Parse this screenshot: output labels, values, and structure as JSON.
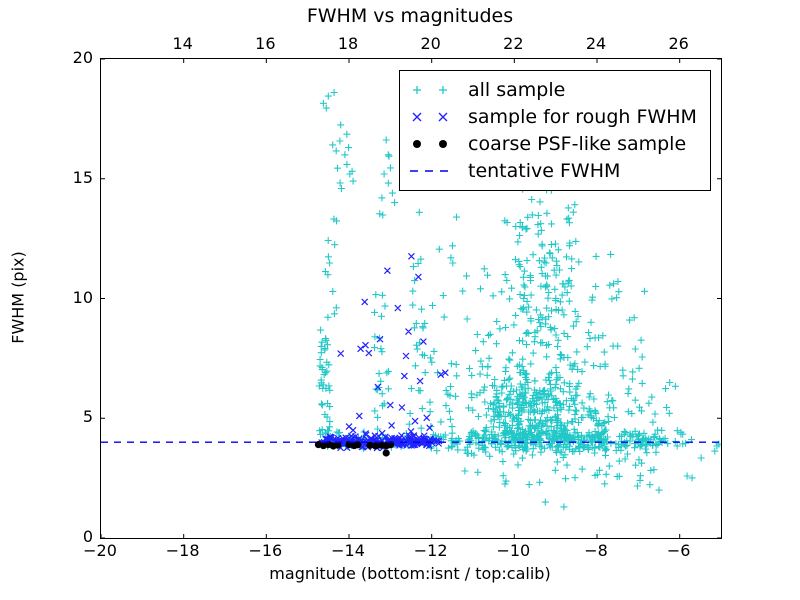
{
  "window": {
    "background": "#ffffff"
  },
  "colors": {
    "all_sample": "#22c8c8",
    "rough_fwhm": "#2222ff",
    "psf_like": "#000000",
    "tentative_line": "#0000ee",
    "axis": "#000000"
  },
  "chart_data": {
    "type": "scatter",
    "title": "FWHM vs magnitudes",
    "seed": 42,
    "grid": false,
    "legend_position": "upper right",
    "x_bottom": {
      "label": "magnitude (bottom:isnt / top:calib)",
      "min": -20,
      "max": -5,
      "ticks": [
        -20,
        -18,
        -16,
        -14,
        -12,
        -10,
        -8,
        -6
      ],
      "tick_labels": [
        "−20",
        "−18",
        "−16",
        "−14",
        "−12",
        "−10",
        "−8",
        "−6"
      ]
    },
    "x_top": {
      "min": 12,
      "max": 27,
      "ticks": [
        14,
        16,
        18,
        20,
        22,
        24,
        26
      ],
      "tick_labels": [
        "14",
        "16",
        "18",
        "20",
        "22",
        "24",
        "26"
      ]
    },
    "y": {
      "label": "FWHM (pix)",
      "min": 0,
      "max": 20,
      "ticks": [
        0,
        5,
        10,
        15,
        20
      ],
      "tick_labels": [
        "0",
        "5",
        "10",
        "15",
        "20"
      ]
    },
    "legend": [
      {
        "marker": "plus",
        "color": "#22c8c8",
        "label": "all sample"
      },
      {
        "marker": "x",
        "color": "#2222ff",
        "label": "sample for rough FWHM"
      },
      {
        "marker": "dot",
        "color": "#000000",
        "label": "coarse PSF-like sample"
      },
      {
        "marker": "dash",
        "color": "#0000ee",
        "label": "tentative FWHM"
      }
    ],
    "tentative_fwhm": {
      "y": 4.0,
      "x1": -20,
      "x2": -5,
      "style": "dashed"
    },
    "series": [
      {
        "name": "all sample",
        "marker": "plus",
        "color": "#22c8c8",
        "points": [
          [
            -14.5,
            18.45
          ],
          [
            -14.36,
            18.6
          ],
          [
            -14.62,
            18.15
          ],
          [
            -14.55,
            17.95
          ],
          [
            -14.2,
            17.25
          ],
          [
            -14.1,
            16.0
          ],
          [
            -14.05,
            15.6
          ],
          [
            -13.98,
            15.2
          ],
          [
            -13.9,
            14.9
          ],
          [
            -13.1,
            16.62
          ],
          [
            -13.05,
            16.0
          ],
          [
            -13.15,
            15.2
          ],
          [
            -12.95,
            14.4
          ],
          [
            -12.3,
            13.6
          ],
          [
            -11.4,
            13.4
          ],
          [
            -6.85,
            10.3
          ],
          [
            -7.1,
            9.2
          ],
          [
            -9.25,
            1.5
          ],
          [
            -8.8,
            1.3
          ],
          [
            -6.95,
            2.6
          ],
          [
            -6.5,
            2.0
          ],
          [
            -5.1,
            3.84
          ],
          [
            -5.15,
            3.63
          ],
          [
            -5.05,
            3.92
          ],
          [
            -5.48,
            3.34
          ],
          [
            -5.82,
            2.59
          ],
          [
            -5.7,
            2.51
          ]
        ],
        "clusters": [
          {
            "n": 40,
            "x": [
              -14.72,
              -14.45
            ],
            "y": [
              4.25,
              8.7
            ]
          },
          {
            "n": 12,
            "x": [
              -14.6,
              -14.3
            ],
            "y": [
              8.7,
              13.8
            ]
          },
          {
            "n": 9,
            "x": [
              -14.4,
              -13.85
            ],
            "y": [
              14.2,
              17.2
            ]
          },
          {
            "n": 7,
            "x": [
              -13.35,
              -12.85
            ],
            "y": [
              13.4,
              16.3
            ]
          },
          {
            "n": 24,
            "x": [
              -13.45,
              -13.0
            ],
            "y": [
              4.3,
              10.2
            ]
          },
          {
            "n": 20,
            "x": [
              -12.55,
              -12.15
            ],
            "y": [
              4.3,
              9.6
            ]
          },
          {
            "n": 6,
            "x": [
              -12.5,
              -12.2
            ],
            "y": [
              9.6,
              12.2
            ]
          },
          {
            "n": 22,
            "x": [
              -12.1,
              -11.05
            ],
            "y": [
              4.3,
              8.0
            ]
          },
          {
            "n": 10,
            "x": [
              -12.0,
              -11.1
            ],
            "y": [
              8.0,
              12.3
            ]
          },
          {
            "n": 470,
            "x": {
              "dist": "gauss",
              "mean": -9.5,
              "sd": 0.85,
              "min": -11.2,
              "max": -6.9
            },
            "y": {
              "dist": "halfgauss",
              "base": 4.05,
              "scale": 1.85,
              "min": 2.7,
              "max": 9.2
            }
          },
          {
            "n": 115,
            "x": {
              "dist": "gauss",
              "mean": -9.4,
              "sd": 0.9,
              "min": -10.9,
              "max": -7.2
            },
            "y": [
              8.2,
              11.6
            ]
          },
          {
            "n": 40,
            "x": {
              "dist": "gauss",
              "mean": -9.25,
              "sd": 0.75,
              "min": -10.5,
              "max": -7.5
            },
            "y": [
              11.6,
              13.6
            ]
          },
          {
            "n": 10,
            "x": [
              -9.9,
              -8.3
            ],
            "y": [
              13.6,
              15.15
            ]
          },
          {
            "n": 110,
            "x": [
              -14.7,
              -11.2
            ],
            "y": {
              "dist": "gauss",
              "mean": 4.05,
              "sd": 0.2,
              "min": 3.6,
              "max": 4.6
            }
          },
          {
            "n": 300,
            "x": [
              -11.2,
              -6.45
            ],
            "y": {
              "dist": "gauss",
              "mean": 4.02,
              "sd": 0.24,
              "min": 3.3,
              "max": 4.75
            }
          },
          {
            "n": 9,
            "x": [
              -6.45,
              -5.65
            ],
            "y": {
              "dist": "gauss",
              "mean": 4.0,
              "sd": 0.18,
              "min": 3.6,
              "max": 4.4
            }
          },
          {
            "n": 38,
            "x": [
              -11.25,
              -6.6
            ],
            "y": [
              2.1,
              3.55
            ]
          },
          {
            "n": 26,
            "x": [
              -7.3,
              -5.9
            ],
            "y": [
              4.2,
              6.6
            ]
          },
          {
            "n": 14,
            "x": [
              -8.1,
              -6.9
            ],
            "y": [
              6.6,
              8.4
            ]
          }
        ]
      },
      {
        "name": "sample for rough FWHM",
        "marker": "x",
        "color": "#2222ff",
        "points": [
          [
            -14.2,
            7.7
          ],
          [
            -13.72,
            7.9
          ],
          [
            -13.6,
            8.05
          ],
          [
            -13.52,
            7.72
          ],
          [
            -12.56,
            8.62
          ],
          [
            -12.66,
            6.76
          ],
          [
            -12.28,
            6.55
          ],
          [
            -12.97,
            4.7
          ],
          [
            -12.4,
            4.88
          ],
          [
            -12.49,
            11.76
          ],
          [
            -13.07,
            11.16
          ],
          [
            -13.62,
            9.86
          ],
          [
            -12.82,
            9.6
          ],
          [
            -12.32,
            10.9
          ],
          [
            -11.67,
            6.9
          ],
          [
            -11.78,
            6.82
          ],
          [
            -13.0,
            5.55
          ],
          [
            -12.12,
            5.02
          ],
          [
            -13.3,
            6.3
          ],
          [
            -14.0,
            4.65
          ],
          [
            -13.75,
            5.1
          ],
          [
            -12.72,
            5.45
          ],
          [
            -12.2,
            8.2
          ],
          [
            -12.62,
            7.6
          ],
          [
            -13.25,
            8.3
          ],
          [
            -12.05,
            4.6
          ],
          [
            -12.5,
            4.45
          ],
          [
            -13.9,
            4.5
          ]
        ],
        "clusters": [
          {
            "n": 165,
            "x": [
              -14.68,
              -12.05
            ],
            "y": {
              "dist": "gauss",
              "mean": 4.02,
              "sd": 0.12,
              "min": 3.72,
              "max": 4.38
            }
          },
          {
            "n": 8,
            "x": [
              -12.05,
              -11.8
            ],
            "y": {
              "dist": "gauss",
              "mean": 4.0,
              "sd": 0.1,
              "min": 3.78,
              "max": 4.3
            }
          }
        ]
      },
      {
        "name": "coarse PSF-like sample",
        "marker": "dot",
        "color": "#000000",
        "points": [
          [
            -14.74,
            3.9
          ],
          [
            -14.62,
            3.86
          ],
          [
            -14.5,
            3.9
          ],
          [
            -14.38,
            3.84
          ],
          [
            -14.27,
            3.88
          ],
          [
            -14.0,
            3.9
          ],
          [
            -13.88,
            3.86
          ],
          [
            -13.79,
            3.89
          ],
          [
            -13.49,
            3.87
          ],
          [
            -13.36,
            3.84
          ],
          [
            -13.22,
            3.88
          ],
          [
            -13.09,
            3.86
          ],
          [
            -12.99,
            3.9
          ],
          [
            -13.1,
            3.55
          ]
        ],
        "clusters": []
      }
    ]
  }
}
